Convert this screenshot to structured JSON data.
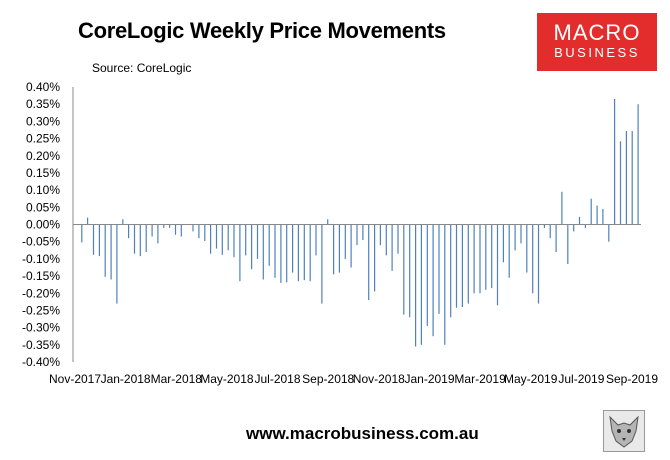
{
  "title": "CoreLogic Weekly Price Movements",
  "source": "Source: CoreLogic",
  "logo": {
    "line1": "MACRO",
    "line2": "BUSINESS"
  },
  "footer": "www.macrobusiness.com.au",
  "colors": {
    "bar": "#4f81bd",
    "axis": "#888888",
    "logo": "#e32d2d"
  },
  "icons": {
    "logo_badge": "wolf-icon"
  },
  "chart_data": {
    "type": "bar",
    "title": "CoreLogic Weekly Price Movements",
    "xlabel": "",
    "ylabel": "",
    "ylim": [
      -0.4,
      0.4
    ],
    "y_ticks": [
      "0.40%",
      "0.35%",
      "0.30%",
      "0.25%",
      "0.20%",
      "0.15%",
      "0.10%",
      "0.05%",
      "0.00%",
      "-0.05%",
      "-0.10%",
      "-0.15%",
      "-0.20%",
      "-0.25%",
      "-0.30%",
      "-0.35%",
      "-0.40%"
    ],
    "x_ticks": [
      "Nov-2017",
      "Jan-2018",
      "Mar-2018",
      "May-2018",
      "Jul-2018",
      "Sep-2018",
      "Nov-2018",
      "Jan-2019",
      "Mar-2019",
      "May-2019",
      "Jul-2019",
      "Sep-2019"
    ],
    "grid": false,
    "legend": "none",
    "values": [
      0.0,
      -0.052,
      0.02,
      -0.088,
      -0.092,
      -0.152,
      -0.16,
      -0.23,
      0.015,
      -0.04,
      -0.085,
      -0.092,
      -0.08,
      -0.035,
      -0.055,
      -0.01,
      -0.01,
      -0.03,
      -0.035,
      -0.0,
      -0.02,
      -0.04,
      -0.048,
      -0.085,
      -0.07,
      -0.088,
      -0.075,
      -0.095,
      -0.165,
      -0.09,
      -0.13,
      -0.1,
      -0.16,
      -0.12,
      -0.155,
      -0.17,
      -0.168,
      -0.14,
      -0.165,
      -0.162,
      -0.165,
      -0.09,
      -0.23,
      0.015,
      -0.145,
      -0.14,
      -0.1,
      -0.125,
      -0.06,
      -0.045,
      -0.22,
      -0.195,
      -0.06,
      -0.09,
      -0.135,
      -0.085,
      -0.262,
      -0.27,
      -0.355,
      -0.35,
      -0.295,
      -0.325,
      -0.26,
      -0.35,
      -0.27,
      -0.242,
      -0.24,
      -0.23,
      -0.2,
      -0.2,
      -0.19,
      -0.185,
      -0.235,
      -0.11,
      -0.155,
      -0.075,
      -0.055,
      -0.14,
      -0.2,
      -0.23,
      -0.01,
      -0.04,
      -0.08,
      0.095,
      -0.115,
      -0.02,
      0.022,
      -0.01,
      0.075,
      0.055,
      0.045,
      -0.05,
      0.365,
      0.242,
      0.272,
      0.272,
      0.35
    ]
  }
}
